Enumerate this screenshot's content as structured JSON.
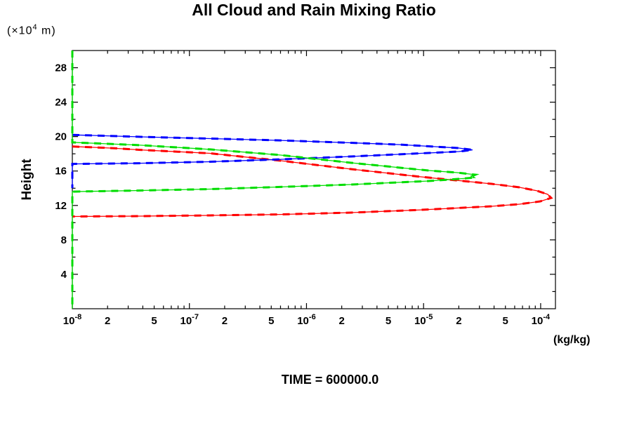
{
  "chart_data": {
    "type": "line",
    "title": "All Cloud and Rain Mixing Ratio",
    "ylabel": "Height",
    "y_units": {
      "pre": "(×10",
      "exp": "4",
      "post": " m)"
    },
    "x_units": "(kg/kg)",
    "caption": "TIME = 600000.0",
    "x_scale": "log",
    "xlim": [
      1e-08,
      0.0001338
    ],
    "ylim": [
      0,
      30
    ],
    "grid": false,
    "legend": "none",
    "x_decades": [
      -8,
      -7,
      -6,
      -5,
      -4
    ],
    "x_minor_multipliers": [
      2,
      3,
      4,
      5,
      6,
      7,
      8,
      9
    ],
    "x_labeled_minors": [
      2,
      5
    ],
    "y_major_ticks": [
      4,
      8,
      12,
      16,
      20,
      24,
      28
    ],
    "y_minor_ticks": [
      2,
      6,
      10,
      14,
      18,
      22,
      26
    ],
    "series": [
      {
        "name": "red",
        "color": "#ff0000",
        "points": [
          [
            1e-08,
            18.85
          ],
          [
            2.2e-08,
            18.66
          ],
          [
            3.8e-08,
            18.46
          ],
          [
            1.5e-07,
            18.06
          ],
          [
            6e-07,
            17.2
          ],
          [
            2.4e-06,
            16.22
          ],
          [
            9.5e-06,
            15.33
          ],
          [
            1.9e-05,
            14.92
          ],
          [
            3.8e-05,
            14.51
          ],
          [
            6.6e-05,
            14.1
          ],
          [
            9.3e-05,
            13.7
          ],
          [
            0.000115,
            13.29
          ],
          [
            0.000123,
            12.87
          ],
          [
            9.9e-05,
            12.47
          ],
          [
            6.6e-05,
            12.15
          ],
          [
            3.8e-05,
            11.9
          ],
          [
            9.5e-06,
            11.49
          ],
          [
            2.4e-06,
            11.17
          ],
          [
            6e-07,
            10.96
          ],
          [
            1.5e-07,
            10.84
          ],
          [
            3.8e-08,
            10.76
          ],
          [
            1e-08,
            10.72
          ]
        ]
      },
      {
        "name": "blue",
        "color": "#0000ff",
        "points": [
          [
            1e-08,
            20.2
          ],
          [
            3.8e-08,
            19.97
          ],
          [
            1.5e-07,
            19.77
          ],
          [
            6e-07,
            19.56
          ],
          [
            2.4e-06,
            19.28
          ],
          [
            6.3e-06,
            19.07
          ],
          [
            1.25e-05,
            18.83
          ],
          [
            2e-05,
            18.67
          ],
          [
            2.62e-05,
            18.46
          ],
          [
            2e-05,
            18.26
          ],
          [
            9.5e-06,
            18.06
          ],
          [
            2.4e-06,
            17.69
          ],
          [
            6e-07,
            17.36
          ],
          [
            1.5e-07,
            17.08
          ],
          [
            3.8e-08,
            16.91
          ],
          [
            1e-08,
            16.83
          ],
          [
            1e-08,
            14.0
          ]
        ]
      },
      {
        "name": "green",
        "color": "#00dd00",
        "points": [
          [
            1e-08,
            30.0
          ],
          [
            1e-08,
            19.33
          ],
          [
            3.8e-08,
            19.0
          ],
          [
            1.5e-07,
            18.51
          ],
          [
            6e-07,
            17.85
          ],
          [
            2.4e-06,
            16.96
          ],
          [
            5.5e-06,
            16.47
          ],
          [
            1.1e-05,
            16.06
          ],
          [
            1.9e-05,
            15.82
          ],
          [
            2.77e-05,
            15.57
          ],
          [
            2.6e-05,
            15.41
          ],
          [
            2.73e-05,
            15.24
          ],
          [
            1.66e-05,
            15.0
          ],
          [
            1.1e-05,
            14.84
          ],
          [
            2.4e-06,
            14.43
          ],
          [
            6e-07,
            14.15
          ],
          [
            1.5e-07,
            13.9
          ],
          [
            3.8e-08,
            13.74
          ],
          [
            1e-08,
            13.61
          ],
          [
            1e-08,
            0.0
          ]
        ]
      }
    ]
  }
}
